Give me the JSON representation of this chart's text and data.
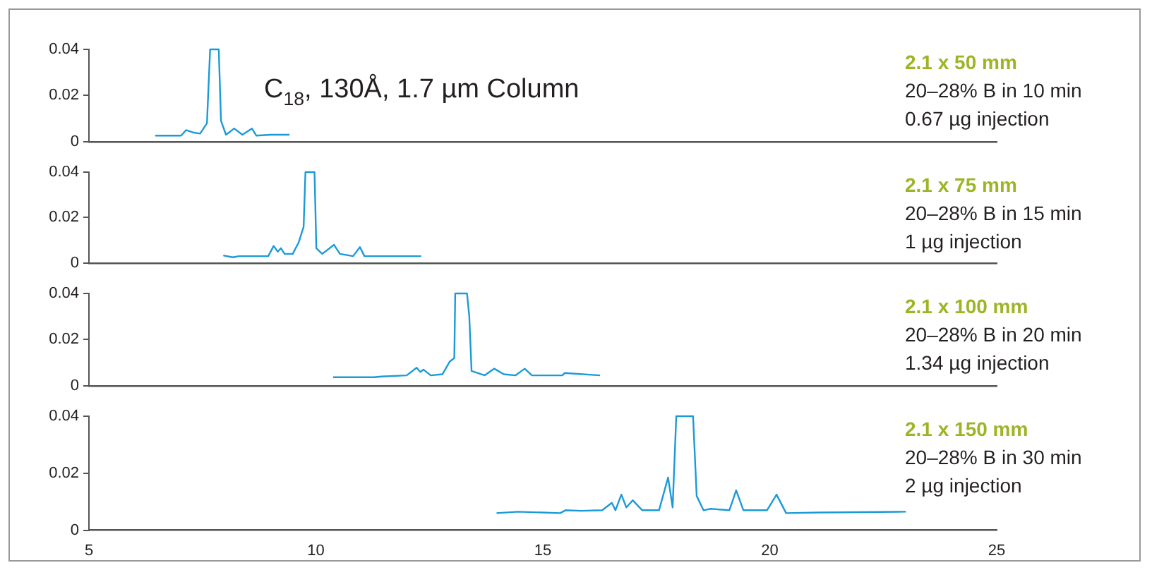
{
  "chart_data": [
    {
      "type": "line",
      "title": "C$_{18}$, 130Å, 1.7 µm Column",
      "color": "#1b9ad7",
      "xlim": [
        5,
        25
      ],
      "ylim": [
        0,
        0.04
      ],
      "yticks": [
        0,
        0.02,
        0.04
      ],
      "tick_labels": "y",
      "grid": false,
      "marker": "none",
      "line_style": "solid",
      "annotations": [
        "2.1 x 50 mm",
        "20–28% B in 10 min",
        "0.67 µg injection"
      ],
      "x": [
        6.46,
        7.03,
        7.14,
        7.29,
        7.45,
        7.6,
        7.67,
        7.86,
        7.91,
        8.02,
        8.2,
        8.38,
        8.59,
        8.69,
        9.0,
        9.42
      ],
      "values": [
        0.0026,
        0.0026,
        0.005,
        0.004,
        0.0035,
        0.008,
        0.04,
        0.04,
        0.009,
        0.003,
        0.0057,
        0.003,
        0.0057,
        0.0026,
        0.003,
        0.003
      ]
    },
    {
      "type": "line",
      "color": "#1b9ad7",
      "xlim": [
        5,
        25
      ],
      "ylim": [
        0,
        0.04
      ],
      "yticks": [
        0,
        0.02,
        0.04
      ],
      "tick_labels": "y",
      "grid": false,
      "marker": "none",
      "line_style": "solid",
      "annotations": [
        "2.1 x 75 mm",
        "20–28% B in 15 min",
        "1 µg injection"
      ],
      "x": [
        7.96,
        8.17,
        8.3,
        8.95,
        9.07,
        9.16,
        9.23,
        9.31,
        9.49,
        9.62,
        9.73,
        9.77,
        9.97,
        10.01,
        10.14,
        10.4,
        10.53,
        10.82,
        10.97,
        11.07,
        12.32
      ],
      "values": [
        0.0033,
        0.0025,
        0.003,
        0.003,
        0.0075,
        0.005,
        0.0065,
        0.004,
        0.004,
        0.009,
        0.016,
        0.04,
        0.04,
        0.0065,
        0.004,
        0.008,
        0.004,
        0.003,
        0.007,
        0.003,
        0.003
      ]
    },
    {
      "type": "line",
      "color": "#1b9ad7",
      "xlim": [
        5,
        25
      ],
      "ylim": [
        0,
        0.04
      ],
      "yticks": [
        0,
        0.02,
        0.04
      ],
      "tick_labels": "y",
      "grid": false,
      "marker": "none",
      "line_style": "solid",
      "annotations": [
        "2.1 x 100 mm",
        "20–28% B in 20 min",
        "1.34 µg injection"
      ],
      "x": [
        10.38,
        11.28,
        11.44,
        12.0,
        12.22,
        12.3,
        12.37,
        12.53,
        12.79,
        12.95,
        13.05,
        13.07,
        13.33,
        13.38,
        13.43,
        13.72,
        13.93,
        14.14,
        14.4,
        14.6,
        14.76,
        15.43,
        15.48,
        16.26
      ],
      "values": [
        0.0037,
        0.0037,
        0.004,
        0.0045,
        0.0078,
        0.006,
        0.007,
        0.0045,
        0.005,
        0.0105,
        0.012,
        0.04,
        0.04,
        0.03,
        0.0064,
        0.0045,
        0.0074,
        0.005,
        0.0045,
        0.0074,
        0.0045,
        0.0045,
        0.0055,
        0.0045
      ]
    },
    {
      "type": "line",
      "color": "#1b9ad7",
      "xlim": [
        5,
        25
      ],
      "xticks": [
        5,
        10,
        15,
        20,
        25
      ],
      "ylim": [
        0,
        0.04
      ],
      "yticks": [
        0,
        0.02,
        0.04
      ],
      "grid": false,
      "marker": "none",
      "line_style": "solid",
      "annotations": [
        "2.1 x 150 mm",
        "20–28% B in 30 min",
        "2 µg injection"
      ],
      "x": [
        13.98,
        14.45,
        15.38,
        15.5,
        15.85,
        16.31,
        16.52,
        16.6,
        16.73,
        16.84,
        16.98,
        17.19,
        17.56,
        17.76,
        17.86,
        17.94,
        18.31,
        18.39,
        18.54,
        18.7,
        19.11,
        19.26,
        19.42,
        19.94,
        20.15,
        20.36,
        21.08,
        23.0
      ],
      "values": [
        0.006,
        0.0065,
        0.006,
        0.007,
        0.0068,
        0.007,
        0.0096,
        0.007,
        0.0125,
        0.008,
        0.0105,
        0.007,
        0.007,
        0.0185,
        0.008,
        0.04,
        0.04,
        0.012,
        0.007,
        0.0075,
        0.007,
        0.014,
        0.007,
        0.007,
        0.0125,
        0.006,
        0.0062,
        0.0065
      ]
    }
  ]
}
